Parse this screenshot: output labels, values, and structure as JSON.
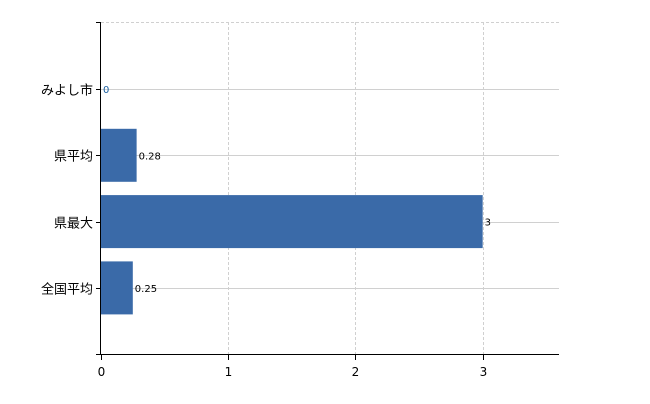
{
  "chart_data": {
    "type": "bar",
    "orientation": "horizontal",
    "categories": [
      "みよし市",
      "県平均",
      "県最大",
      "全国平均"
    ],
    "values": [
      0,
      0.28,
      3,
      0.25
    ],
    "data_labels": [
      "0",
      "0.28",
      "3",
      "0.25"
    ],
    "title": "",
    "xlabel": "",
    "ylabel": "",
    "xlim": [
      0,
      3.6
    ],
    "xticks": [
      "0",
      "1",
      "2",
      "3"
    ],
    "grid": true,
    "legend": "none",
    "colors": {
      "bar": "#3a6aa8",
      "grid": "#d0d0d0",
      "axis": "#000000",
      "zero_label": "#1a5fa0"
    }
  }
}
